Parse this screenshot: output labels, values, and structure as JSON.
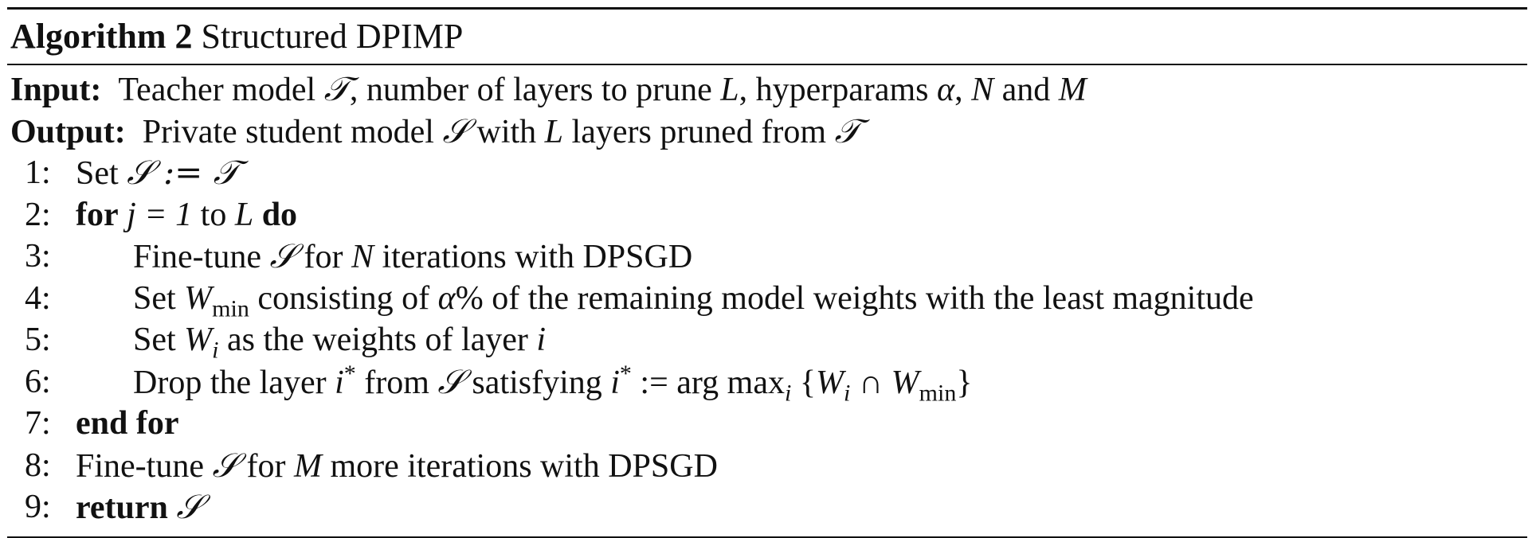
{
  "algorithm": {
    "label": "Algorithm 2",
    "title": "Structured DPIMP"
  },
  "input": {
    "keyword": "Input:",
    "text_a": "Teacher model ",
    "sym_T": "𝒯",
    "text_b": ", number of layers to prune ",
    "sym_L": "L",
    "text_c": ", hyperparams ",
    "sym_alpha": "α",
    "text_d": ", ",
    "sym_N": "N",
    "text_e": " and ",
    "sym_M": "M"
  },
  "output": {
    "keyword": "Output:",
    "text_a": "Private student model ",
    "sym_S": "𝒮",
    "text_b": " with ",
    "sym_L": "L",
    "text_c": " layers pruned from ",
    "sym_T": "𝒯"
  },
  "lines": [
    {
      "num": "1:",
      "pre": "Set ",
      "math": "𝒮 := 𝒯"
    },
    {
      "num": "2:",
      "kw1": "for",
      "math": "j = 1",
      "mid": " to ",
      "sym": "L",
      "kw2": "do"
    },
    {
      "num": "3:",
      "pre": "Fine-tune ",
      "sym_S": "𝒮",
      "mid": " for ",
      "sym_N": "N",
      "post": " iterations with DPSGD"
    },
    {
      "num": "4:",
      "pre": "Set ",
      "sym_W": "W",
      "sub": "min",
      "mid": " consisting of ",
      "sym_alpha": "α",
      "post": "% of the remaining model weights with the least magnitude"
    },
    {
      "num": "5:",
      "pre": "Set ",
      "sym_W": "W",
      "sub": "i",
      "mid": " as the weights of layer ",
      "sym_i": "i"
    },
    {
      "num": "6:",
      "pre": "Drop the layer ",
      "sym_i": "i",
      "sup": "*",
      "mid": " from ",
      "sym_S": "𝒮",
      "mid2": " satisfying ",
      "sym_i2": "i",
      "sup2": "*",
      "op": " := arg max",
      "sub_i": "i",
      "set_open": " {",
      "sym_W1": "W",
      "sub_w1": "i",
      "cap": " ∩ ",
      "sym_W2": "W",
      "sub_w2": "min",
      "set_close": "}"
    },
    {
      "num": "7:",
      "kw": "end for"
    },
    {
      "num": "8:",
      "pre": "Fine-tune ",
      "sym_S": "𝒮",
      "mid": " for ",
      "sym_M": "M",
      "post": " more iterations with DPSGD"
    },
    {
      "num": "9:",
      "kw": "return",
      "sym_S": "𝒮"
    }
  ]
}
